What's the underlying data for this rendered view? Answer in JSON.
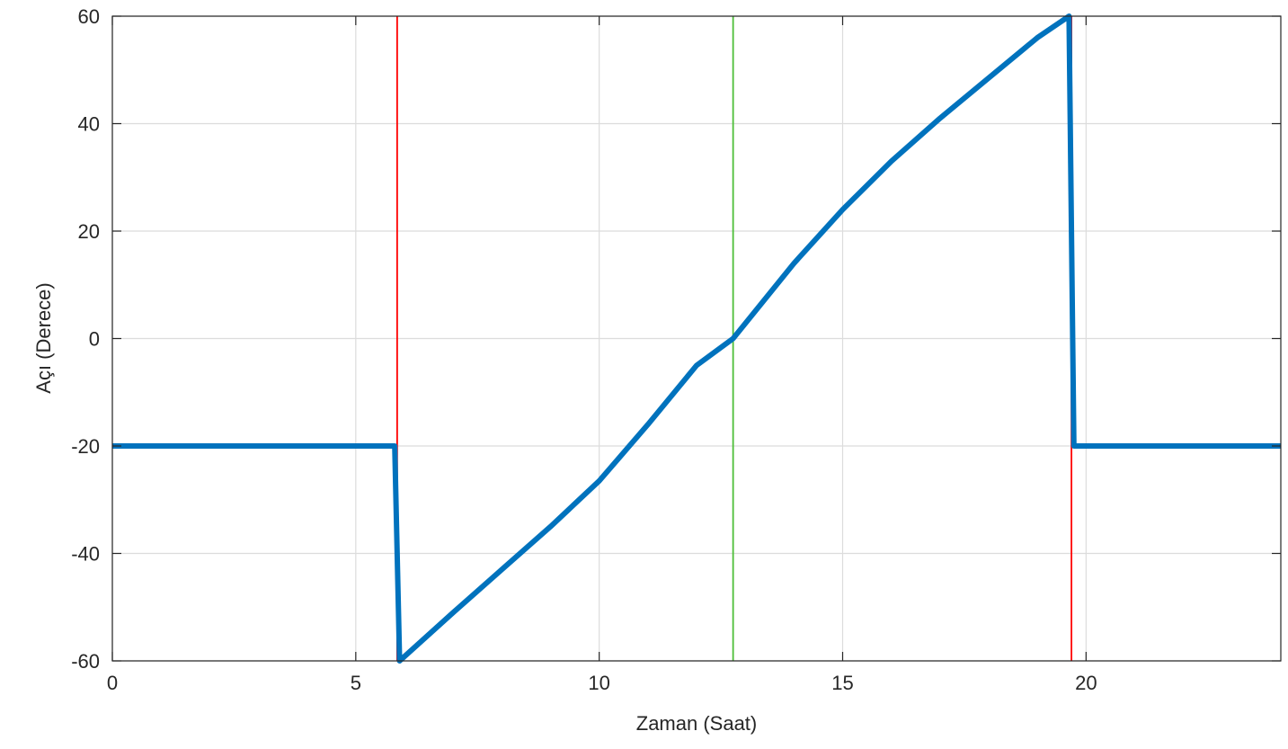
{
  "chart_data": {
    "type": "line",
    "title": "",
    "xlabel": "Zaman (Saat)",
    "ylabel": "Açı (Derece)",
    "xlim": [
      0,
      24
    ],
    "ylim": [
      -60,
      60
    ],
    "xticks": [
      0,
      5,
      10,
      15,
      20
    ],
    "yticks": [
      -60,
      -40,
      -20,
      0,
      20,
      40,
      60
    ],
    "grid": true,
    "legend": "none",
    "series": [
      {
        "color": "#0072BD",
        "x": [
          0,
          5.8,
          5.9,
          7,
          8,
          9,
          10,
          11,
          12,
          12.75,
          14,
          15,
          16,
          17,
          18,
          19,
          19.65,
          19.75,
          24
        ],
        "y": [
          -20,
          -20,
          -60,
          -51,
          -43,
          -35,
          -26.5,
          -16,
          -5,
          0,
          14,
          24,
          33,
          41,
          48.5,
          56,
          60,
          -20,
          -20
        ]
      }
    ],
    "vertical_markers": [
      {
        "x": 5.85,
        "color": "#FF0000"
      },
      {
        "x": 12.75,
        "color": "#4DBE38"
      },
      {
        "x": 19.7,
        "color": "#FF0000"
      }
    ]
  }
}
